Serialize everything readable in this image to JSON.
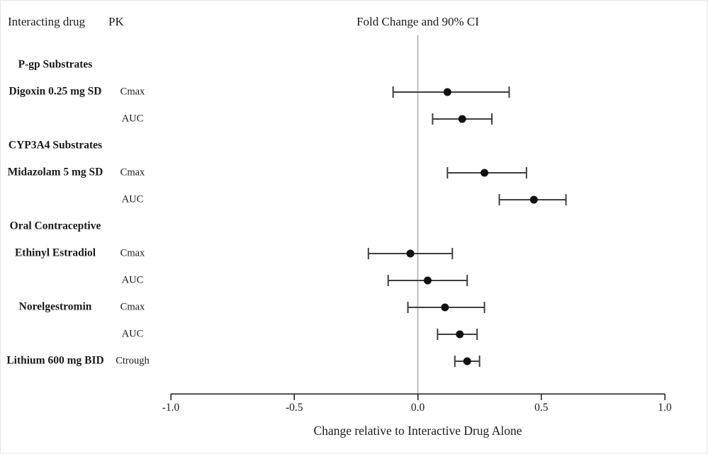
{
  "header": {
    "col_drug": "Interacting drug",
    "col_pk": "PK",
    "col_plot": "Fold Change and 90% CI"
  },
  "chart_data": {
    "type": "scatter",
    "subtype": "forest-plot",
    "title": "Fold Change and 90% CI",
    "xlabel": "Change relative to Interactive Drug Alone",
    "xlim": [
      -1.0,
      1.0
    ],
    "xticks": [
      -1.0,
      -0.5,
      0.0,
      0.5,
      1.0
    ],
    "xtick_labels": [
      "-1.0",
      "-0.5",
      "0.0",
      "0.5",
      "1.0"
    ],
    "reference_line_x": 0.0,
    "grid": false,
    "legend": "none",
    "rows": [
      {
        "kind": "group",
        "drug": "P-gp Substrates",
        "pk": "",
        "estimate": null,
        "ci_low": null,
        "ci_high": null
      },
      {
        "kind": "data",
        "drug": "Digoxin 0.25 mg SD",
        "pk": "Cmax",
        "estimate": 0.12,
        "ci_low": -0.1,
        "ci_high": 0.37
      },
      {
        "kind": "data",
        "drug": "",
        "pk": "AUC",
        "estimate": 0.18,
        "ci_low": 0.06,
        "ci_high": 0.3
      },
      {
        "kind": "group",
        "drug": "CYP3A4 Substrates",
        "pk": "",
        "estimate": null,
        "ci_low": null,
        "ci_high": null
      },
      {
        "kind": "data",
        "drug": "Midazolam 5 mg SD",
        "pk": "Cmax",
        "estimate": 0.27,
        "ci_low": 0.12,
        "ci_high": 0.44
      },
      {
        "kind": "data",
        "drug": "",
        "pk": "AUC",
        "estimate": 0.47,
        "ci_low": 0.33,
        "ci_high": 0.6
      },
      {
        "kind": "group",
        "drug": "Oral Contraceptive",
        "pk": "",
        "estimate": null,
        "ci_low": null,
        "ci_high": null
      },
      {
        "kind": "data",
        "drug": "Ethinyl Estradiol",
        "pk": "Cmax",
        "estimate": -0.03,
        "ci_low": -0.2,
        "ci_high": 0.14
      },
      {
        "kind": "data",
        "drug": "",
        "pk": "AUC",
        "estimate": 0.04,
        "ci_low": -0.12,
        "ci_high": 0.2
      },
      {
        "kind": "data",
        "drug": "Norelgestromin",
        "pk": "Cmax",
        "estimate": 0.11,
        "ci_low": -0.04,
        "ci_high": 0.27
      },
      {
        "kind": "data",
        "drug": "",
        "pk": "AUC",
        "estimate": 0.17,
        "ci_low": 0.08,
        "ci_high": 0.24
      },
      {
        "kind": "data",
        "drug": "Lithium 600 mg BID",
        "pk": "Ctrough",
        "estimate": 0.2,
        "ci_low": 0.15,
        "ci_high": 0.25
      }
    ],
    "colors": {
      "point": "#111111",
      "ci_line": "#3f3f3f",
      "reference_line": "#a9a9a9",
      "axis": "#1a1a1a",
      "text": "#1a1a1a"
    }
  }
}
